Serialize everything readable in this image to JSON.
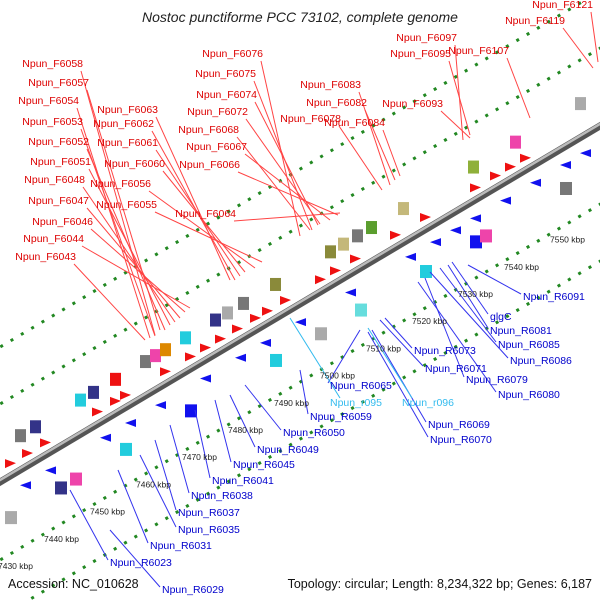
{
  "title": "Nostoc punctiforme PCC 73102, complete genome",
  "footer": {
    "accession": "Accession: NC_010628",
    "topology": "Topology: circular; Length: 8,234,322 bp; Genes: 6,187"
  },
  "colors": {
    "forward_label": "#dd0000",
    "reverse_label": "#0000cc",
    "rna_label": "#33bbee",
    "forward_gene": "#ee1111",
    "reverse_gene": "#1111ee",
    "genome_line": "#888888",
    "grid_dots": "#228822"
  },
  "scale_labels": [
    {
      "text": "7430 kbp",
      "bp": 7430
    },
    {
      "text": "7440 kbp",
      "bp": 7440
    },
    {
      "text": "7450 kbp",
      "bp": 7450
    },
    {
      "text": "7460 kbp",
      "bp": 7460
    },
    {
      "text": "7470 kbp",
      "bp": 7470
    },
    {
      "text": "7480 kbp",
      "bp": 7480
    },
    {
      "text": "7490 kbp",
      "bp": 7490
    },
    {
      "text": "7500 kbp",
      "bp": 7500
    },
    {
      "text": "7510 kbp",
      "bp": 7510
    },
    {
      "text": "7520 kbp",
      "bp": 7520
    },
    {
      "text": "7530 kbp",
      "bp": 7530
    },
    {
      "text": "7540 kbp",
      "bp": 7540
    },
    {
      "text": "7550 kbp",
      "bp": 7550
    }
  ],
  "forward_labels": [
    "Npun_F6121",
    "Npun_F6119",
    "Npun_F6097",
    "Npun_F6095",
    "Npun_F6107",
    "Npun_F6058",
    "Npun_F6076",
    "Npun_F6057",
    "Npun_F6075",
    "Npun_F6083",
    "Npun_F6074",
    "Npun_F6054",
    "Npun_F6063",
    "Npun_F6082",
    "Npun_F6093",
    "Npun_F6072",
    "Npun_F6053",
    "Npun_F6062",
    "Npun_F6078",
    "Npun_F6084",
    "Npun_F6068",
    "Npun_F6061",
    "Npun_F6052",
    "Npun_F6067",
    "Npun_F6060",
    "Npun_F6051",
    "Npun_F6066",
    "Npun_F6048",
    "Npun_F6056",
    "Npun_F6047",
    "Npun_F6055",
    "Npun_F6064",
    "Npun_F6046",
    "Npun_F6044",
    "Npun_F6043"
  ],
  "reverse_labels": [
    "Npun_R6091",
    "glgC",
    "Npun_R6081",
    "Npun_R6085",
    "Npun_R6073",
    "Npun_R6086",
    "Npun_R6071",
    "Npun_R6079",
    "Npun_R6065",
    "Npun_R6080",
    "Npun_R6059",
    "Npun_R6069",
    "Npun_R6050",
    "Npun_R6070",
    "Npun_R6049",
    "Npun_R6045",
    "Npun_R6041",
    "Npun_R6038",
    "Npun_R6037",
    "Npun_R6035",
    "Npun_R6031",
    "Npun_R6023",
    "Npun_R6029"
  ],
  "rna_labels": [
    "Npun_r095",
    "Npun_r096"
  ]
}
